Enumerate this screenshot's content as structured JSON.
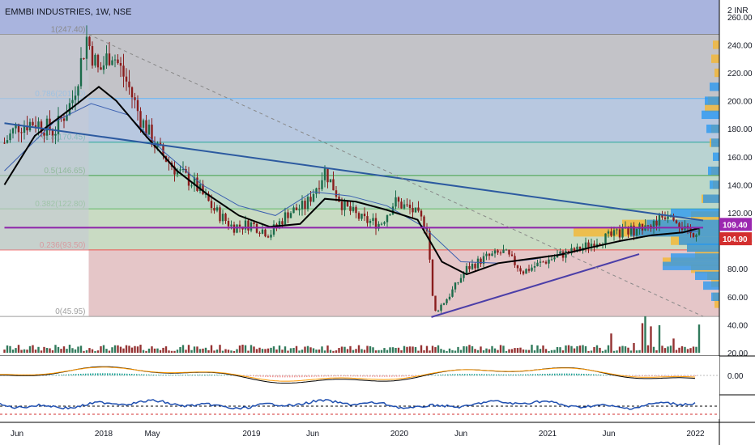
{
  "header": {
    "title": "EMMBI INDUSTRIES, 1W, NSE"
  },
  "colors": {
    "candle_up": "#1b6b4a",
    "candle_down": "#8a1c1c",
    "ema_black": "#000000",
    "ma_blue": "#3a5fb0",
    "trendline": "#2c5aa0",
    "support_line": "#4b3ea8",
    "horizontal_purple": "#8e24aa",
    "price_tag_purple": "#9c27b0",
    "price_tag_red": "#d32f2f",
    "volume_profile_yellow": "#f5b731",
    "volume_profile_blue": "#2196f3"
  },
  "chart_data": {
    "type": "candlestick",
    "symbol": "EMMBI INDUSTRIES",
    "timeframe": "1W",
    "exchange": "NSE",
    "currency_label": "INR",
    "x_tick_labels": [
      "Jun",
      "2018",
      "May",
      "2019",
      "Jun",
      "2020",
      "Jun",
      "2021",
      "Jun",
      "2022"
    ],
    "x_tick_dates": [
      "2017-06-01",
      "2018-01-01",
      "2018-05-01",
      "2019-01-01",
      "2019-06-01",
      "2020-01-01",
      "2020-06-01",
      "2021-01-01",
      "2021-06-01",
      "2022-01-01"
    ],
    "y_tick_labels": [
      "20.00",
      "40.00",
      "60.00",
      "80.00",
      "100.00",
      "120.00",
      "140.00",
      "160.00",
      "180.00",
      "200.00",
      "220.00",
      "240.00",
      "260.00"
    ],
    "ylim": [
      20,
      272
    ],
    "y_top_label": "2",
    "fib_levels": [
      {
        "label": "1(247.40)",
        "ratio": 1,
        "value": 247.4
      },
      {
        "label": "0.786(201.60)",
        "ratio": 0.786,
        "value": 201.6
      },
      {
        "label": "0.618(170.45)",
        "ratio": 0.618,
        "value": 170.45
      },
      {
        "label": "0.5(146.65)",
        "ratio": 0.5,
        "value": 146.65
      },
      {
        "label": "0.382(122.80)",
        "ratio": 0.382,
        "value": 122.8
      },
      {
        "label": "0.236(93.50)",
        "ratio": 0.236,
        "value": 93.5
      },
      {
        "label": "0(45.95)",
        "ratio": 0,
        "value": 45.95
      }
    ],
    "price_labels": [
      {
        "value": 109.4,
        "label": "109.40"
      },
      {
        "value": 104.9,
        "label": "104.90"
      }
    ],
    "series": [
      {
        "kind": "close_approx",
        "dates": [
          "2017-05-01",
          "2017-06-01",
          "2017-07-15",
          "2017-09-01",
          "2017-10-15",
          "2017-11-20",
          "2017-12-20",
          "2018-01-20",
          "2018-03-01",
          "2018-04-01",
          "2018-05-15",
          "2018-07-01",
          "2018-08-15",
          "2018-10-01",
          "2018-11-15",
          "2019-01-01",
          "2019-02-15",
          "2019-04-01",
          "2019-05-15",
          "2019-07-01",
          "2019-08-15",
          "2019-10-01",
          "2019-11-15",
          "2019-12-20",
          "2020-02-01",
          "2020-03-10",
          "2020-03-26",
          "2020-05-01",
          "2020-06-15",
          "2020-08-01",
          "2020-09-15",
          "2020-11-01",
          "2020-12-15",
          "2021-02-01",
          "2021-03-15",
          "2021-05-01",
          "2021-06-15",
          "2021-08-01",
          "2021-09-15",
          "2021-11-01",
          "2021-12-15",
          "2022-01-10"
        ],
        "values": [
          170,
          182,
          185,
          178,
          200,
          245,
          220,
          236,
          212,
          188,
          165,
          150,
          140,
          122,
          110,
          112,
          105,
          120,
          125,
          150,
          125,
          115,
          112,
          128,
          122,
          110,
          48,
          60,
          80,
          88,
          92,
          78,
          84,
          90,
          93,
          100,
          104,
          108,
          112,
          122,
          104,
          109
        ]
      },
      {
        "kind": "ema_black",
        "dates": [
          "2017-05-01",
          "2017-07-15",
          "2017-10-15",
          "2017-12-20",
          "2018-02-01",
          "2018-04-15",
          "2018-07-01",
          "2018-09-15",
          "2018-12-01",
          "2019-02-15",
          "2019-05-01",
          "2019-07-01",
          "2019-09-15",
          "2019-12-01",
          "2020-02-15",
          "2020-04-15",
          "2020-06-15",
          "2020-09-01",
          "2020-11-15",
          "2021-02-01",
          "2021-04-15",
          "2021-07-01",
          "2021-09-15",
          "2021-12-01",
          "2022-01-10"
        ],
        "values": [
          140,
          175,
          195,
          210,
          200,
          175,
          150,
          133,
          118,
          110,
          112,
          130,
          128,
          122,
          115,
          85,
          76,
          84,
          87,
          90,
          95,
          100,
          104,
          106,
          109
        ]
      },
      {
        "kind": "ma_blue",
        "dates": [
          "2017-05-01",
          "2017-09-01",
          "2017-12-01",
          "2018-03-01",
          "2018-06-01",
          "2018-09-01",
          "2018-12-01",
          "2019-03-01",
          "2019-06-01",
          "2019-09-01",
          "2019-12-01",
          "2020-03-01",
          "2020-06-01",
          "2020-09-01",
          "2020-12-01",
          "2021-03-01",
          "2021-06-01",
          "2021-09-01",
          "2021-12-01",
          "2022-01-10"
        ],
        "values": [
          150,
          185,
          198,
          190,
          163,
          140,
          125,
          118,
          135,
          132,
          125,
          110,
          85,
          84,
          87,
          92,
          98,
          103,
          106,
          107
        ]
      }
    ],
    "lines": [
      {
        "name": "",
        "points": [
          [
            "2017-05-01",
            184.0
          ],
          [
            "2022-01-20",
            114.5
          ]
        ]
      },
      {
        "name": "",
        "points": [
          [
            "2020-03-20",
            45.5
          ],
          [
            "2021-08-15",
            90.5
          ]
        ]
      },
      {
        "name": "",
        "points": [
          [
            "2017-05-01",
            109.4
          ],
          [
            "2022-01-20",
            109.4
          ]
        ]
      }
    ],
    "indicators": [
      {
        "panel": "macd",
        "y_tick_labels": [
          "0.00"
        ]
      },
      {
        "panel": "rsi"
      }
    ]
  }
}
